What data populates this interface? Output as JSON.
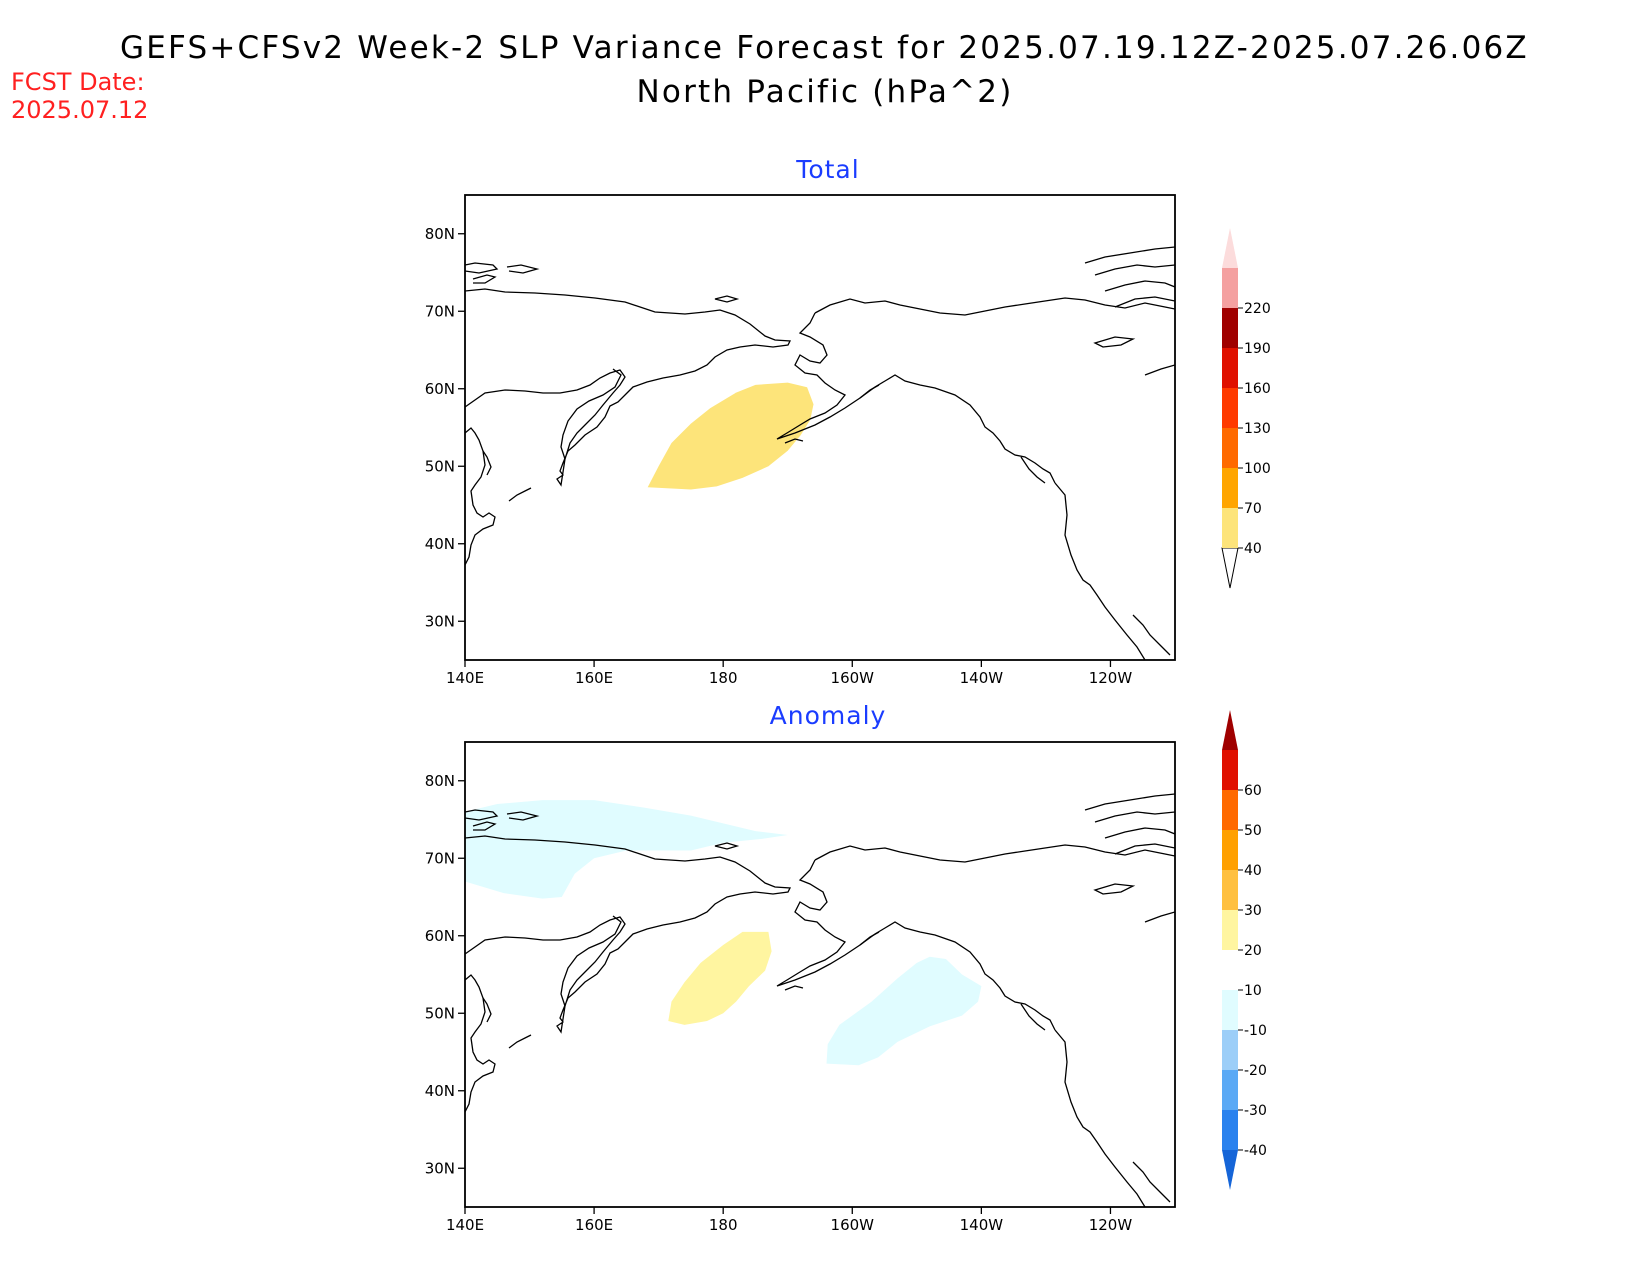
{
  "header": {
    "title": "GEFS+CFSv2 Week-2 SLP Variance Forecast for 2025.07.19.12Z-2025.07.26.06Z",
    "subtitle": "North Pacific (hPa^2)",
    "fcst_label": "FCST Date:",
    "fcst_date": "2025.07.12"
  },
  "colors": {
    "title": "#1a3cff",
    "fcst": "#ff2020"
  },
  "chart_data": [
    {
      "type": "map",
      "title": "Total",
      "region": "North Pacific",
      "lon_range": [
        140,
        250
      ],
      "lat_range": [
        25,
        85
      ],
      "x_ticks": [
        {
          "lon": 140,
          "label": "140E"
        },
        {
          "lon": 160,
          "label": "160E"
        },
        {
          "lon": 180,
          "label": "180"
        },
        {
          "lon": 200,
          "label": "160W"
        },
        {
          "lon": 220,
          "label": "140W"
        },
        {
          "lon": 240,
          "label": "120W"
        }
      ],
      "y_ticks": [
        {
          "lat": 30,
          "label": "30N"
        },
        {
          "lat": 40,
          "label": "40N"
        },
        {
          "lat": 50,
          "label": "50N"
        },
        {
          "lat": 60,
          "label": "60N"
        },
        {
          "lat": 70,
          "label": "70N"
        },
        {
          "lat": 80,
          "label": "80N"
        }
      ],
      "colorbar": {
        "levels": [
          "40",
          "70",
          "100",
          "130",
          "160",
          "190",
          "220"
        ],
        "colors": [
          "#fde47a",
          "#ffa500",
          "#ff6a00",
          "#ff3a00",
          "#e01000",
          "#a00000",
          "#f4a0a0",
          "#fcdcdc"
        ],
        "extend_low_color": "#ffffff"
      },
      "shaded_regions": [
        {
          "level": "40-70",
          "color": "#fde47a",
          "polygon": [
            [
              168.3,
              47.3
            ],
            [
              170,
              50
            ],
            [
              172,
              53
            ],
            [
              175,
              55.5
            ],
            [
              178,
              57.5
            ],
            [
              182,
              59.5
            ],
            [
              185,
              60.5
            ],
            [
              190,
              60.8
            ],
            [
              193,
              60.2
            ],
            [
              194,
              58
            ],
            [
              193.5,
              56
            ],
            [
              192,
              54
            ],
            [
              190,
              52
            ],
            [
              187,
              50
            ],
            [
              183,
              48.5
            ],
            [
              179,
              47.4
            ],
            [
              175,
              47
            ]
          ]
        }
      ]
    },
    {
      "type": "map",
      "title": "Anomaly",
      "region": "North Pacific",
      "lon_range": [
        140,
        250
      ],
      "lat_range": [
        25,
        85
      ],
      "x_ticks": [
        {
          "lon": 140,
          "label": "140E"
        },
        {
          "lon": 160,
          "label": "160E"
        },
        {
          "lon": 180,
          "label": "180"
        },
        {
          "lon": 200,
          "label": "160W"
        },
        {
          "lon": 220,
          "label": "140W"
        },
        {
          "lon": 240,
          "label": "120W"
        }
      ],
      "y_ticks": [
        {
          "lat": 30,
          "label": "30N"
        },
        {
          "lat": 40,
          "label": "40N"
        },
        {
          "lat": 50,
          "label": "50N"
        },
        {
          "lat": 60,
          "label": "60N"
        },
        {
          "lat": 70,
          "label": "70N"
        },
        {
          "lat": 80,
          "label": "80N"
        }
      ],
      "colorbar": {
        "levels": [
          "-40",
          "-30",
          "-20",
          "-10",
          "10",
          "20",
          "30",
          "40",
          "50",
          "60"
        ],
        "colors": [
          "#1565d8",
          "#2a82ee",
          "#5aa9f5",
          "#9ccef8",
          "#e0fcff",
          "#ffffff",
          "#fff5a0",
          "#ffc040",
          "#ffa000",
          "#ff6a00",
          "#e01000",
          "#a00000"
        ]
      },
      "shaded_regions": [
        {
          "level": "-20--10",
          "color": "#e0fcff",
          "polygon": [
            [
              140,
              76
            ],
            [
              145,
              77
            ],
            [
              152,
              77.5
            ],
            [
              160,
              77.5
            ],
            [
              168,
              76.5
            ],
            [
              175,
              75.5
            ],
            [
              180,
              74.5
            ],
            [
              185,
              73.5
            ],
            [
              190,
              73
            ],
            [
              186,
              72.5
            ],
            [
              180,
              72
            ],
            [
              175,
              71
            ],
            [
              165,
              71
            ],
            [
              160,
              70
            ],
            [
              157,
              68
            ],
            [
              155,
              65
            ],
            [
              152,
              64.8
            ],
            [
              146,
              65.5
            ],
            [
              140,
              67
            ]
          ]
        },
        {
          "level": "-20--10",
          "color": "#e0fcff",
          "polygon": [
            [
              196,
              43.5
            ],
            [
              196.2,
              46
            ],
            [
              198,
              48.5
            ],
            [
              203,
              51.5
            ],
            [
              207,
              54.5
            ],
            [
              210,
              56.5
            ],
            [
              212,
              57.3
            ],
            [
              214.5,
              57
            ],
            [
              217,
              55
            ],
            [
              220,
              53.5
            ],
            [
              219.5,
              51.5
            ],
            [
              217,
              49.7
            ],
            [
              212,
              48.3
            ],
            [
              207,
              46.3
            ],
            [
              204,
              44.3
            ],
            [
              201,
              43.3
            ]
          ]
        },
        {
          "level": "10-20",
          "color": "#fff5a0",
          "polygon": [
            [
              171.5,
              49
            ],
            [
              172,
              51.5
            ],
            [
              174,
              54
            ],
            [
              176.5,
              56.5
            ],
            [
              180,
              58.8
            ],
            [
              183,
              60.5
            ],
            [
              187,
              60.5
            ],
            [
              187.5,
              58
            ],
            [
              186.5,
              55.5
            ],
            [
              184,
              53.5
            ],
            [
              182,
              51.5
            ],
            [
              180,
              50
            ],
            [
              177.5,
              49
            ],
            [
              174,
              48.5
            ]
          ]
        }
      ]
    }
  ]
}
